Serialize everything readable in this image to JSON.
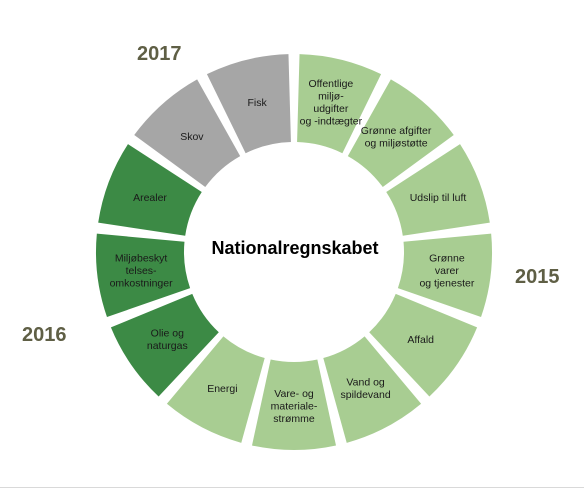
{
  "title": "Nationalregnskabet",
  "years": {
    "y2017": "2017",
    "y2015": "2015",
    "y2016": "2016"
  },
  "colors": {
    "2015": "#a8cd92",
    "2016": "#3c8a45",
    "2017": "#a6a6a6",
    "year_text": "#5f5f45"
  },
  "segments": [
    {
      "id": "offentlige",
      "lines": [
        "Offentlige",
        "miljø-",
        "udgifter",
        "og -indtægter"
      ],
      "group": "2015"
    },
    {
      "id": "groenne-afgifter",
      "lines": [
        "Grønne afgifter",
        "og miljøstøtte"
      ],
      "group": "2015"
    },
    {
      "id": "udslip",
      "lines": [
        "Udslip til luft"
      ],
      "group": "2015"
    },
    {
      "id": "groenne-varer",
      "lines": [
        "Grønne",
        "varer",
        "og tjenester"
      ],
      "group": "2015"
    },
    {
      "id": "affald",
      "lines": [
        "Affald"
      ],
      "group": "2015"
    },
    {
      "id": "vand",
      "lines": [
        "Vand og",
        "spildevand"
      ],
      "group": "2015"
    },
    {
      "id": "vare-materiale",
      "lines": [
        "Vare- og",
        "materiale-",
        "strømme"
      ],
      "group": "2015"
    },
    {
      "id": "energi",
      "lines": [
        "Energi"
      ],
      "group": "2015"
    },
    {
      "id": "olie-naturgas",
      "lines": [
        "Olie og",
        "naturgas"
      ],
      "group": "2016"
    },
    {
      "id": "miljobeskyttelse",
      "lines": [
        "Miljøbeskyt",
        "telses-",
        "omkostninger"
      ],
      "group": "2016"
    },
    {
      "id": "arealer",
      "lines": [
        "Arealer"
      ],
      "group": "2016"
    },
    {
      "id": "skov",
      "lines": [
        "Skov"
      ],
      "group": "2017"
    },
    {
      "id": "fisk",
      "lines": [
        "Fisk"
      ],
      "group": "2017"
    }
  ]
}
